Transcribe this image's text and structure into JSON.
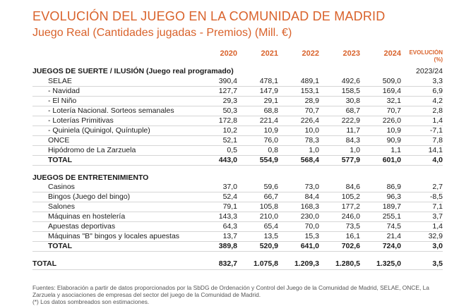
{
  "title": "EVOLUCIÓN DEL JUEGO EN LA COMUNIDAD DE MADRID",
  "subtitle": "Juego Real (Cantidades jugadas - Premios) (Mill. €)",
  "accent_color": "#d9622b",
  "columns": [
    "2020",
    "2021",
    "2022",
    "2023",
    "2024"
  ],
  "evolution_header": "EVOLUCIÓN",
  "evolution_unit": "(%)",
  "evolution_period": "2023/24",
  "section1": {
    "title": "JUEGOS DE SUERTE / ILUSIÓN (Juego real programado)",
    "rows": [
      {
        "label": "SELAE",
        "values": [
          "390,4",
          "478,1",
          "489,1",
          "492,6",
          "509,0",
          "3,3"
        ]
      },
      {
        "label": "- Navidad",
        "values": [
          "127,7",
          "147,9",
          "153,1",
          "158,5",
          "169,4",
          "6,9"
        ]
      },
      {
        "label": "- El Niño",
        "values": [
          "29,3",
          "29,1",
          "28,9",
          "30,8",
          "32,1",
          "4,2"
        ]
      },
      {
        "label": "- Lotería Nacional. Sorteos semanales",
        "values": [
          "50,3",
          "68,8",
          "70,7",
          "68,7",
          "70,7",
          "2,8"
        ]
      },
      {
        "label": "- Loterías Primitivas",
        "values": [
          "172,8",
          "221,4",
          "226,4",
          "222,9",
          "226,0",
          "1,4"
        ]
      },
      {
        "label": "- Quiniela (Quinigol, Quíntuple)",
        "values": [
          "10,2",
          "10,9",
          "10,0",
          "11,7",
          "10,9",
          "-7,1"
        ]
      },
      {
        "label": "ONCE",
        "values": [
          "52,1",
          "76,0",
          "78,3",
          "84,3",
          "90,9",
          "7,8"
        ]
      },
      {
        "label": "Hipódromo de La Zarzuela",
        "values": [
          "0,5",
          "0,8",
          "1,0",
          "1,0",
          "1,1",
          "14,1"
        ]
      },
      {
        "label": "TOTAL",
        "values": [
          "443,0",
          "554,9",
          "568,4",
          "577,9",
          "601,0",
          "4,0"
        ]
      }
    ]
  },
  "section2": {
    "title": "JUEGOS DE ENTRETENIMIENTO",
    "rows": [
      {
        "label": "Casinos",
        "values": [
          "37,0",
          "59,6",
          "73,0",
          "84,6",
          "86,9",
          "2,7"
        ]
      },
      {
        "label": "Bingos (Juego del bingo)",
        "values": [
          "52,4",
          "66,7",
          "84,4",
          "105,2",
          "96,3",
          "-8,5"
        ]
      },
      {
        "label": "Salones",
        "values": [
          "79,1",
          "105,8",
          "168,3",
          "177,2",
          "189,7",
          "7,1"
        ]
      },
      {
        "label": "Máquinas en hostelería",
        "values": [
          "143,3",
          "210,0",
          "230,0",
          "246,0",
          "255,1",
          "3,7"
        ]
      },
      {
        "label": "Apuestas deportivas",
        "values": [
          "64,3",
          "65,4",
          "70,0",
          "73,5",
          "74,5",
          "1,4"
        ]
      },
      {
        "label": "Máquinas \"B\" bingos y locales apuestas",
        "values": [
          "13,7",
          "13,5",
          "15,3",
          "16,1",
          "21,4",
          "32,9"
        ]
      },
      {
        "label": "TOTAL",
        "values": [
          "389,8",
          "520,9",
          "641,0",
          "702,6",
          "724,0",
          "3,0"
        ]
      }
    ]
  },
  "grand_total": {
    "label": "TOTAL",
    "values": [
      "832,7",
      "1.075,8",
      "1.209,3",
      "1.280,5",
      "1.325,0",
      "3,5"
    ]
  },
  "footnotes": [
    "Fuentes: Elaboración a partir de datos proporcionados por la SbDG de Ordenación y Control del Juego de la Comunidad de Madrid, SELAE, ONCE, La Zarzuela y asociaciones de empresas del sector del juego de la Comunidad de Madrid.",
    "(*) Los datos sombreados son estimaciones."
  ]
}
